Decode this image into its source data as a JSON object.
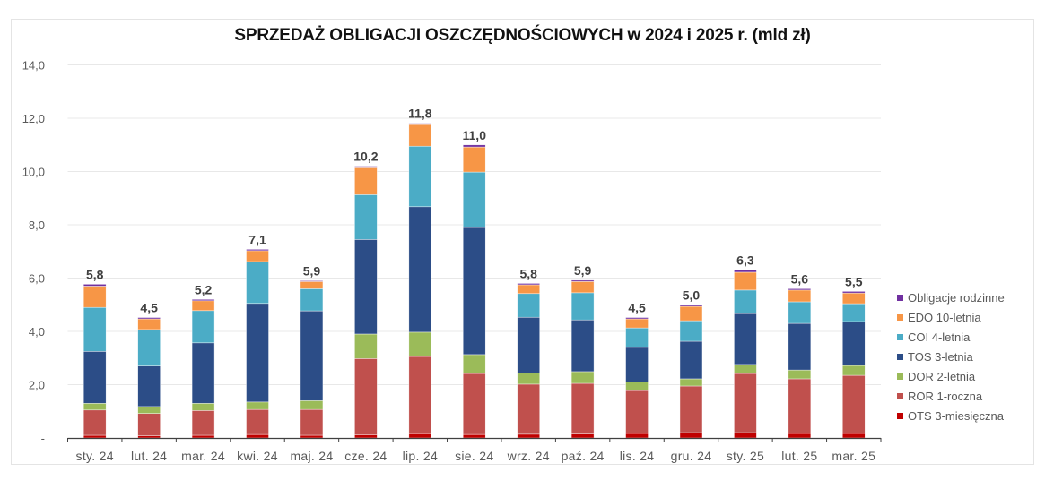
{
  "chart_data": {
    "type": "bar",
    "stacked": true,
    "title": "SPRZEDAŻ OBLIGACJI OSZCZĘDNOŚCIOWYCH w 2024 i 2025 r. (mld zł)",
    "xlabel": "",
    "ylabel": "",
    "ylim": [
      0,
      14
    ],
    "yticks": [
      0,
      2,
      4,
      6,
      8,
      10,
      12,
      14
    ],
    "ytick_labels": [
      "-",
      "2,0",
      "4,0",
      "6,0",
      "8,0",
      "10,0",
      "12,0",
      "14,0"
    ],
    "grid": true,
    "legend_position": "right",
    "categories": [
      "sty.  24",
      "lut.  24",
      "mar.  24",
      "kwi.  24",
      "maj.  24",
      "cze.  24",
      "lip.  24",
      "sie.  24",
      "wrz.  24",
      "paź.  24",
      "lis.  24",
      "gru.  24",
      "sty.  25",
      "lut.  25",
      "mar.  25"
    ],
    "totals": [
      "5,8",
      "4,5",
      "5,2",
      "7,1",
      "5,9",
      "10,2",
      "11,8",
      "11,0",
      "5,8",
      "5,9",
      "4,5",
      "5,0",
      "6,3",
      "5,6",
      "5,5"
    ],
    "series": [
      {
        "name": "OTS 3-miesięczna",
        "color": "#c00000",
        "values": [
          0.1,
          0.08,
          0.1,
          0.13,
          0.1,
          0.12,
          0.16,
          0.13,
          0.14,
          0.15,
          0.17,
          0.2,
          0.2,
          0.17,
          0.17
        ]
      },
      {
        "name": "ROR 1-roczna",
        "color": "#c0504d",
        "values": [
          0.95,
          0.84,
          0.93,
          0.94,
          0.97,
          2.86,
          2.9,
          2.29,
          1.88,
          1.9,
          1.61,
          1.75,
          2.22,
          2.05,
          2.18
        ]
      },
      {
        "name": "DOR 2-letnia",
        "color": "#9bbb59",
        "values": [
          0.25,
          0.26,
          0.27,
          0.28,
          0.33,
          0.92,
          0.91,
          0.71,
          0.41,
          0.44,
          0.32,
          0.27,
          0.34,
          0.33,
          0.37
        ]
      },
      {
        "name": "TOS 3-letnia",
        "color": "#2c4d87",
        "values": [
          1.95,
          1.52,
          2.27,
          3.7,
          3.37,
          3.55,
          4.71,
          4.77,
          2.1,
          1.94,
          1.3,
          1.41,
          1.91,
          1.75,
          1.65
        ]
      },
      {
        "name": "COI 4-letnia",
        "color": "#4bacc6",
        "values": [
          1.65,
          1.37,
          1.21,
          1.57,
          0.83,
          1.68,
          2.27,
          2.08,
          0.89,
          1.02,
          0.73,
          0.77,
          0.88,
          0.81,
          0.67
        ]
      },
      {
        "name": "EDO 10-letnia",
        "color": "#f79646",
        "values": [
          0.8,
          0.4,
          0.37,
          0.41,
          0.27,
          1.01,
          0.81,
          0.94,
          0.33,
          0.42,
          0.34,
          0.54,
          0.67,
          0.44,
          0.4
        ]
      },
      {
        "name": "Obligacje rodzinne",
        "color": "#7030a0",
        "values": [
          0.07,
          0.05,
          0.05,
          0.05,
          0.03,
          0.06,
          0.05,
          0.08,
          0.05,
          0.05,
          0.05,
          0.06,
          0.08,
          0.05,
          0.06
        ]
      }
    ],
    "legend_order": [
      "Obligacje rodzinne",
      "EDO 10-letnia",
      "COI 4-letnia",
      "TOS 3-letnia",
      "DOR 2-letnia",
      "ROR 1-roczna",
      "OTS 3-miesięczna"
    ]
  }
}
